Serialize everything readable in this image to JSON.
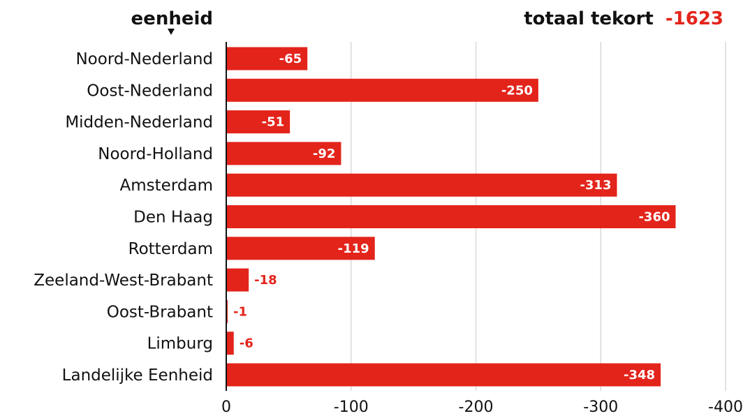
{
  "header": {
    "category_title": "eenheid",
    "total_label": "totaal tekort",
    "total_value": "-1623"
  },
  "colors": {
    "bar": "#e3241b",
    "grid": "#d9d9d9",
    "axis": "#111111",
    "text": "#111111"
  },
  "chart_data": {
    "type": "bar",
    "orientation": "horizontal",
    "title": "",
    "xlabel": "",
    "ylabel": "eenheid",
    "categories": [
      "Noord-Nederland",
      "Oost-Nederland",
      "Midden-Nederland",
      "Noord-Holland",
      "Amsterdam",
      "Den Haag",
      "Rotterdam",
      "Zeeland-West-Brabant",
      "Oost-Brabant",
      "Limburg",
      "Landelijke Eenheid"
    ],
    "values": [
      -65,
      -250,
      -51,
      -92,
      -313,
      -360,
      -119,
      -18,
      -1,
      -6,
      -348
    ],
    "xlim": [
      0,
      -400
    ],
    "xticks": [
      0,
      -100,
      -200,
      -300,
      -400
    ],
    "xtick_labels": [
      "0",
      "-100",
      "-200",
      "-300",
      "-400"
    ],
    "grid": true
  }
}
